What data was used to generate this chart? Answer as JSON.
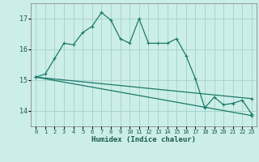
{
  "title": "",
  "xlabel": "Humidex (Indice chaleur)",
  "background_color": "#cceee8",
  "grid_color": "#aad4ce",
  "line_color": "#1a7a6a",
  "ylim": [
    13.5,
    17.5
  ],
  "xlim": [
    -0.5,
    23.5
  ],
  "yticks": [
    14,
    15,
    16,
    17
  ],
  "xticks": [
    0,
    1,
    2,
    3,
    4,
    5,
    6,
    7,
    8,
    9,
    10,
    11,
    12,
    13,
    14,
    15,
    16,
    17,
    18,
    19,
    20,
    21,
    22,
    23
  ],
  "series1_x": [
    0,
    1,
    2,
    3,
    4,
    5,
    6,
    7,
    8,
    9,
    10,
    11,
    12,
    13,
    14,
    15,
    16,
    17,
    18,
    19,
    20,
    21,
    22,
    23
  ],
  "series1_y": [
    15.1,
    15.2,
    15.7,
    16.2,
    16.15,
    16.55,
    16.75,
    17.2,
    16.95,
    16.35,
    16.2,
    17.0,
    16.2,
    16.2,
    16.2,
    16.35,
    15.8,
    15.05,
    14.1,
    14.45,
    14.2,
    14.25,
    14.35,
    13.9
  ],
  "series2_x": [
    0,
    23
  ],
  "series2_y": [
    15.1,
    14.4
  ],
  "series3_x": [
    0,
    23
  ],
  "series3_y": [
    15.1,
    13.85
  ]
}
